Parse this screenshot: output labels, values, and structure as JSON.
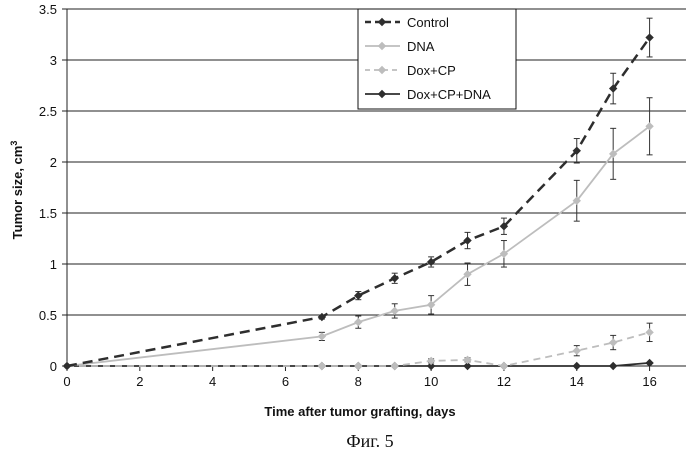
{
  "chart_data": {
    "type": "line",
    "xlabel": "Time after tumor grafting, days",
    "ylabel": "Tumor size, cm",
    "ylabel_superscript": "3",
    "xlim": [
      0,
      17
    ],
    "ylim": [
      0,
      3.5
    ],
    "xticks": [
      "0",
      "2",
      "4",
      "6",
      "8",
      "10",
      "12",
      "14",
      "16"
    ],
    "yticks": [
      "0",
      "0.5",
      "1",
      "1.5",
      "2",
      "2.5",
      "3",
      "3.5"
    ],
    "grid": "horizontal",
    "legend_position": "top-center",
    "series": [
      {
        "name": "Control",
        "color": "#2e2e2e",
        "dash": "long-dash",
        "marker": "diamond",
        "x": [
          0,
          7,
          8,
          9,
          10,
          11,
          12,
          14,
          15,
          16
        ],
        "y": [
          0,
          0.48,
          0.69,
          0.86,
          1.02,
          1.23,
          1.37,
          2.11,
          2.72,
          3.22
        ],
        "err": [
          0,
          0.02,
          0.04,
          0.05,
          0.05,
          0.08,
          0.08,
          0.12,
          0.15,
          0.19
        ]
      },
      {
        "name": "DNA",
        "color": "#bdbdbd",
        "dash": "solid",
        "marker": "diamond",
        "x": [
          0,
          7,
          8,
          9,
          10,
          11,
          12,
          14,
          15,
          16
        ],
        "y": [
          0,
          0.29,
          0.43,
          0.54,
          0.6,
          0.9,
          1.1,
          1.62,
          2.08,
          2.35
        ],
        "err": [
          0,
          0.04,
          0.06,
          0.07,
          0.09,
          0.11,
          0.13,
          0.2,
          0.25,
          0.28
        ]
      },
      {
        "name": "Dox+CP",
        "color": "#bdbdbd",
        "dash": "dash",
        "marker": "diamond",
        "x": [
          0,
          7,
          8,
          9,
          10,
          11,
          12,
          14,
          15,
          16
        ],
        "y": [
          0,
          0,
          0,
          0,
          0.05,
          0.06,
          0,
          0.15,
          0.23,
          0.33
        ],
        "err": [
          0,
          0,
          0,
          0,
          0.02,
          0.02,
          0,
          0.05,
          0.07,
          0.09
        ]
      },
      {
        "name": "Dox+CP+DNA",
        "color": "#2e2e2e",
        "dash": "solid",
        "marker": "diamond",
        "x": [
          0,
          7,
          8,
          9,
          10,
          11,
          12,
          14,
          15,
          16
        ],
        "y": [
          0,
          0,
          0,
          0,
          0,
          0,
          0,
          0,
          0,
          0.03
        ],
        "err": [
          0,
          0,
          0,
          0,
          0,
          0,
          0,
          0,
          0,
          0
        ]
      }
    ]
  },
  "caption": "Фиг. 5"
}
